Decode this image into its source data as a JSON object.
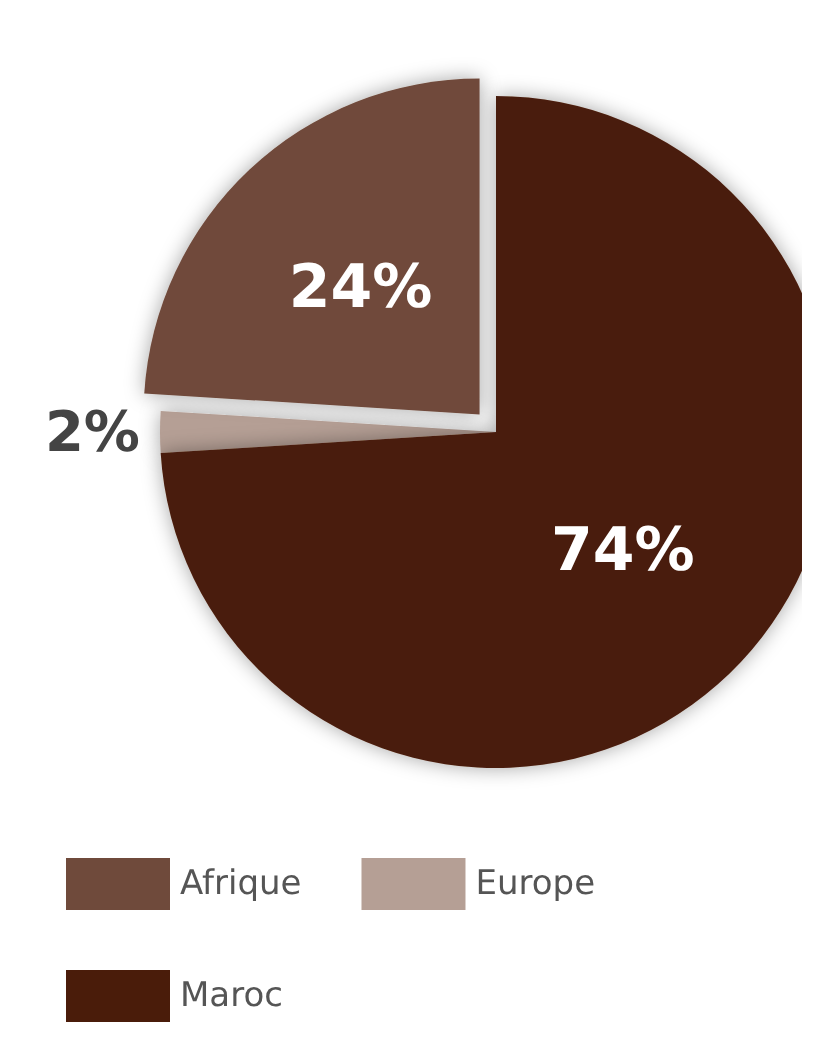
{
  "chart_data": {
    "type": "pie",
    "categories": [
      "Afrique",
      "Europe",
      "Maroc"
    ],
    "values": [
      24,
      2,
      74
    ],
    "colors": [
      "#6f4a3b",
      "#b59f95",
      "#4a1c0a"
    ],
    "value_labels": [
      "24%",
      "2%",
      "74%"
    ],
    "legend": "bottom"
  }
}
